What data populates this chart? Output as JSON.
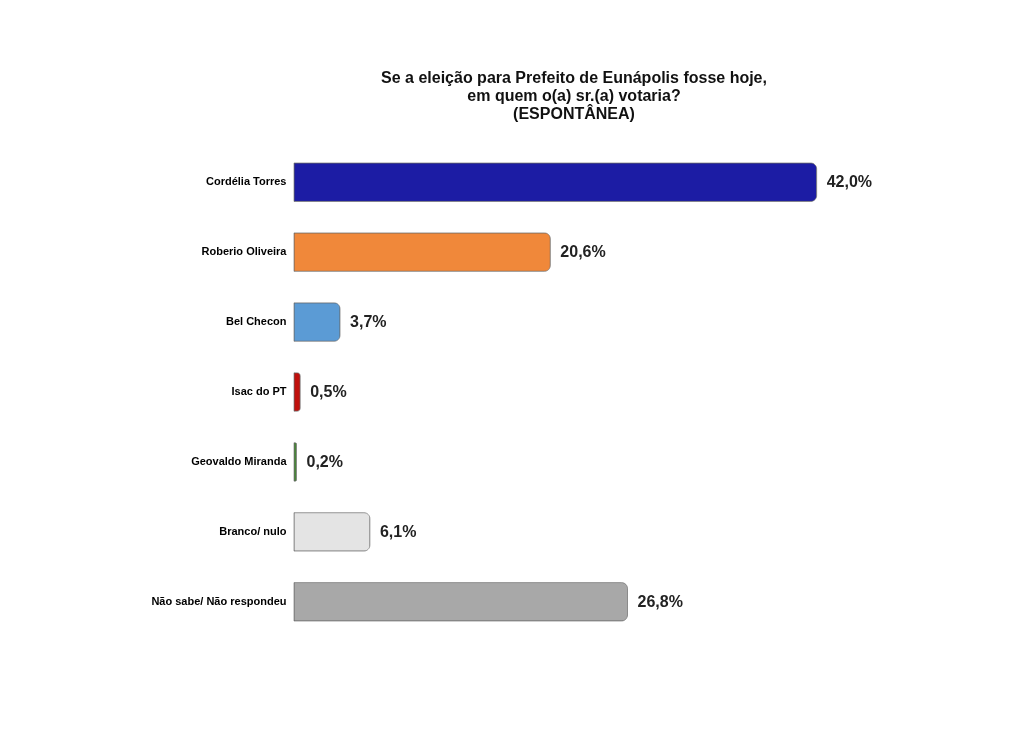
{
  "chart_data": {
    "type": "bar",
    "orientation": "horizontal",
    "title": [
      "Se a eleição para Prefeito de Eunápolis fosse hoje,",
      "em quem o(a) sr.(a) votaria?",
      "(ESPONTÂNEA)"
    ],
    "categories": [
      "Cordélia Torres",
      "Roberio Oliveira",
      "Bel Checon",
      "Isac do PT",
      "Geovaldo Miranda",
      "Branco/ nulo",
      "Não sabe/ Não respondeu"
    ],
    "values": [
      42.0,
      20.6,
      3.7,
      0.5,
      0.2,
      6.1,
      26.8
    ],
    "colors": [
      "#1c1ca4",
      "#f0883a",
      "#5b9bd5",
      "#c0100c",
      "#4a8a3a",
      "#e4e4e4",
      "#a8a8a8"
    ],
    "value_labels": [
      "42,0%",
      "20,6%",
      "3,7%",
      "0,5%",
      "0,2%",
      "6,1%",
      "26,8%"
    ],
    "tick_labels": "y"
  }
}
